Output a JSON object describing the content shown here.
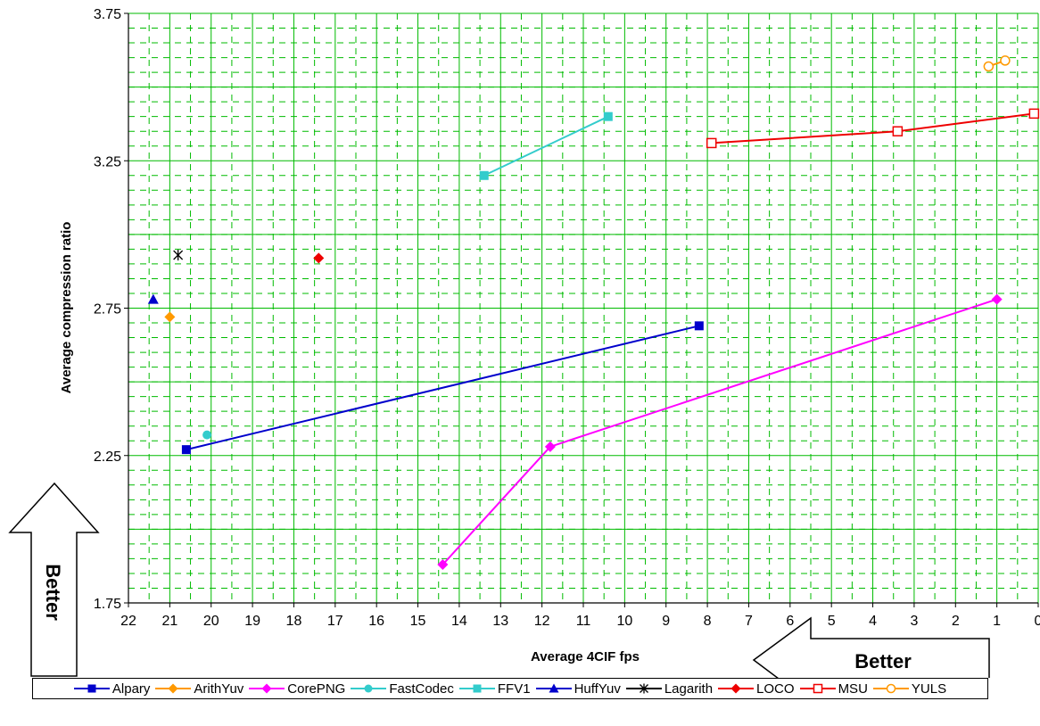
{
  "chart_data": {
    "type": "scatter",
    "xlabel": "Average 4CIF  fps",
    "ylabel": "Average compression ratio",
    "xlim": [
      22,
      0
    ],
    "ylim": [
      1.75,
      3.75
    ],
    "x_reversed": true,
    "x_ticks": [
      "22",
      "21",
      "20",
      "19",
      "18",
      "17",
      "16",
      "15",
      "14",
      "13",
      "12",
      "11",
      "10",
      "9",
      "8",
      "7",
      "6",
      "5",
      "4",
      "3",
      "2",
      "1",
      "0"
    ],
    "y_ticks": [
      "1.75",
      "2.25",
      "2.75",
      "3.25",
      "3.75"
    ],
    "grid": true,
    "legend_position": "bottom",
    "annotations": {
      "better_up": "Better",
      "better_left": "Better"
    },
    "series": [
      {
        "name": "Alpary",
        "color": "#0000CC",
        "marker": "square",
        "points": [
          [
            20.6,
            2.27
          ],
          [
            8.2,
            2.69
          ]
        ]
      },
      {
        "name": "ArithYuv",
        "color": "#FF9900",
        "marker": "diamond",
        "points": [
          [
            21.0,
            2.72
          ]
        ]
      },
      {
        "name": "CorePNG",
        "color": "#FF00FF",
        "marker": "diamond",
        "points": [
          [
            14.4,
            1.88
          ],
          [
            11.8,
            2.28
          ],
          [
            1.0,
            2.78
          ]
        ]
      },
      {
        "name": "FastCodec",
        "color": "#33CCCC",
        "marker": "circle",
        "points": [
          [
            20.1,
            2.32
          ]
        ]
      },
      {
        "name": "FFV1",
        "color": "#33CCCC",
        "marker": "square",
        "points": [
          [
            13.4,
            3.2
          ],
          [
            10.4,
            3.4
          ]
        ]
      },
      {
        "name": "HuffYuv",
        "color": "#0000CC",
        "marker": "triangle",
        "points": [
          [
            21.4,
            2.78
          ]
        ]
      },
      {
        "name": "Lagarith",
        "color": "#000000",
        "marker": "star",
        "points": [
          [
            20.8,
            2.93
          ]
        ]
      },
      {
        "name": "LOCO",
        "color": "#EE0000",
        "marker": "diamond",
        "points": [
          [
            17.4,
            2.92
          ]
        ]
      },
      {
        "name": "MSU",
        "color": "#EE0000",
        "marker": "open-square",
        "points": [
          [
            7.9,
            3.31
          ],
          [
            3.4,
            3.35
          ],
          [
            0.1,
            3.41
          ]
        ]
      },
      {
        "name": "YULS",
        "color": "#FF9900",
        "marker": "open-circle",
        "points": [
          [
            1.2,
            3.57
          ],
          [
            0.8,
            3.59
          ]
        ]
      }
    ]
  }
}
